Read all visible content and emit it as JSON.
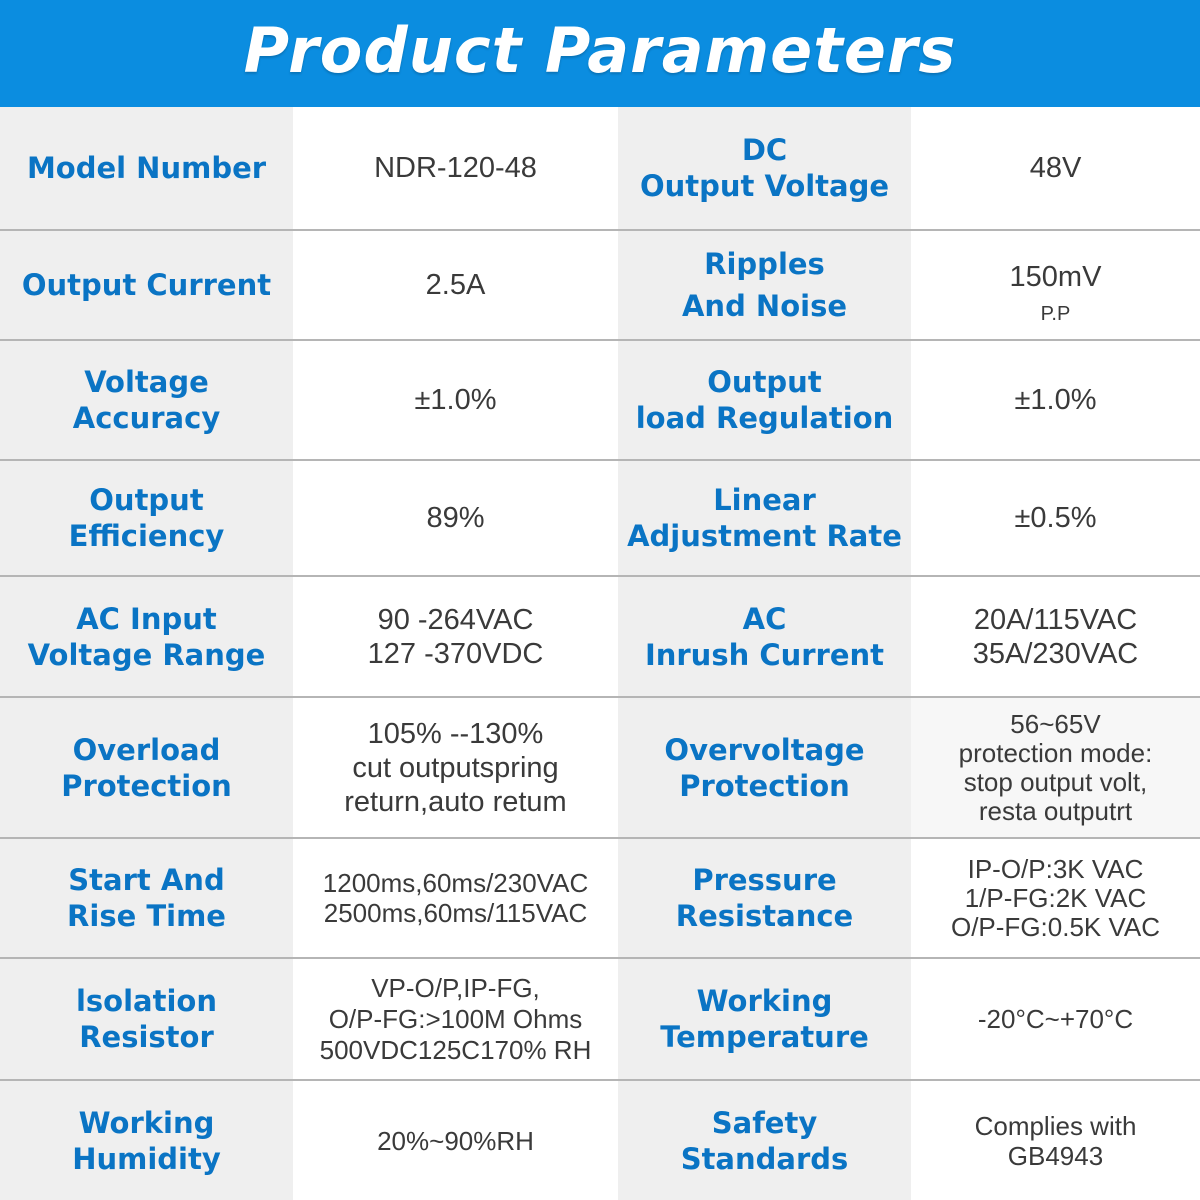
{
  "title": "Product Parameters",
  "colors": {
    "header_bg": "#0b8de0",
    "label": "#0a74c4",
    "value": "#3a3a3a",
    "label_bg": "#efefef"
  },
  "rows": [
    {
      "l1": [
        "Model Number"
      ],
      "v1": [
        "NDR-120-48"
      ],
      "l2": [
        "DC",
        "Output Voltage"
      ],
      "v2": [
        "48V"
      ]
    },
    {
      "l1": [
        "Output Current"
      ],
      "v1": [
        "2.5A"
      ],
      "l2": [
        "Ripples",
        "And Noise"
      ],
      "v2_main": "150mV",
      "v2_sub": "P.P"
    },
    {
      "l1": [
        "Voltage",
        "Accuracy"
      ],
      "v1": [
        "±1.0%"
      ],
      "l2": [
        "Output",
        "load Regulation"
      ],
      "v2": [
        "±1.0%"
      ]
    },
    {
      "l1": [
        "Output",
        "Efficiency"
      ],
      "v1": [
        "89%"
      ],
      "l2": [
        "Linear",
        "Adjustment Rate"
      ],
      "v2": [
        "±0.5%"
      ]
    },
    {
      "l1": [
        "AC Input",
        "Voltage Range"
      ],
      "v1": [
        "90 -264VAC",
        "127 -370VDC"
      ],
      "l2": [
        "AC",
        "Inrush Current"
      ],
      "v2": [
        "20A/115VAC",
        "35A/230VAC"
      ]
    },
    {
      "l1": [
        "Overload",
        "Protection"
      ],
      "v1": [
        "105% --130%",
        "cut outputspring",
        "return,auto retum"
      ],
      "l2": [
        "Overvoltage",
        "Protection"
      ],
      "v2": [
        "56~65V",
        "protection mode:",
        "stop output volt,",
        "resta outputrt"
      ]
    },
    {
      "l1": [
        "Start And",
        "Rise Time"
      ],
      "v1": [
        "1200ms,60ms/230VAC",
        "2500ms,60ms/115VAC"
      ],
      "l2": [
        "Pressure",
        "Resistance"
      ],
      "v2": [
        "IP-O/P:3K VAC",
        "1/P-FG:2K VAC",
        "O/P-FG:0.5K VAC"
      ]
    },
    {
      "l1": [
        "lsolation",
        "Resistor"
      ],
      "v1": [
        "VP-O/P,IP-FG,",
        "O/P-FG:>100M Ohms",
        "500VDC125C170% RH"
      ],
      "l2": [
        "Working",
        "Temperature"
      ],
      "v2": [
        "-20°C~+70°C"
      ]
    },
    {
      "l1": [
        "Working",
        "Humidity"
      ],
      "v1": [
        "20%~90%RH"
      ],
      "l2": [
        "Safety",
        "Standards"
      ],
      "v2": [
        "Complies with",
        "GB4943"
      ]
    }
  ]
}
